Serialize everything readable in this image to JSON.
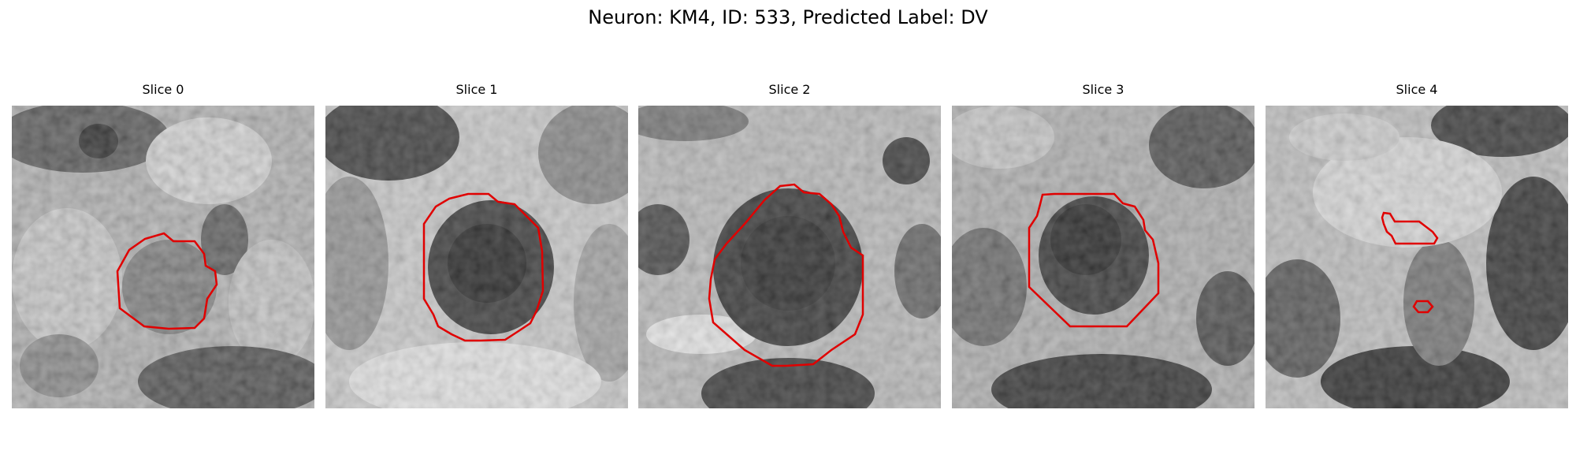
{
  "figure": {
    "title": "Neuron: KM4, ID: 533, Predicted Label: DV",
    "panels": [
      {
        "title": "Slice 0"
      },
      {
        "title": "Slice 1"
      },
      {
        "title": "Slice 2"
      },
      {
        "title": "Slice 3"
      },
      {
        "title": "Slice 4"
      }
    ]
  },
  "colors": {
    "outline": "#e00000",
    "background": "#ffffff"
  }
}
